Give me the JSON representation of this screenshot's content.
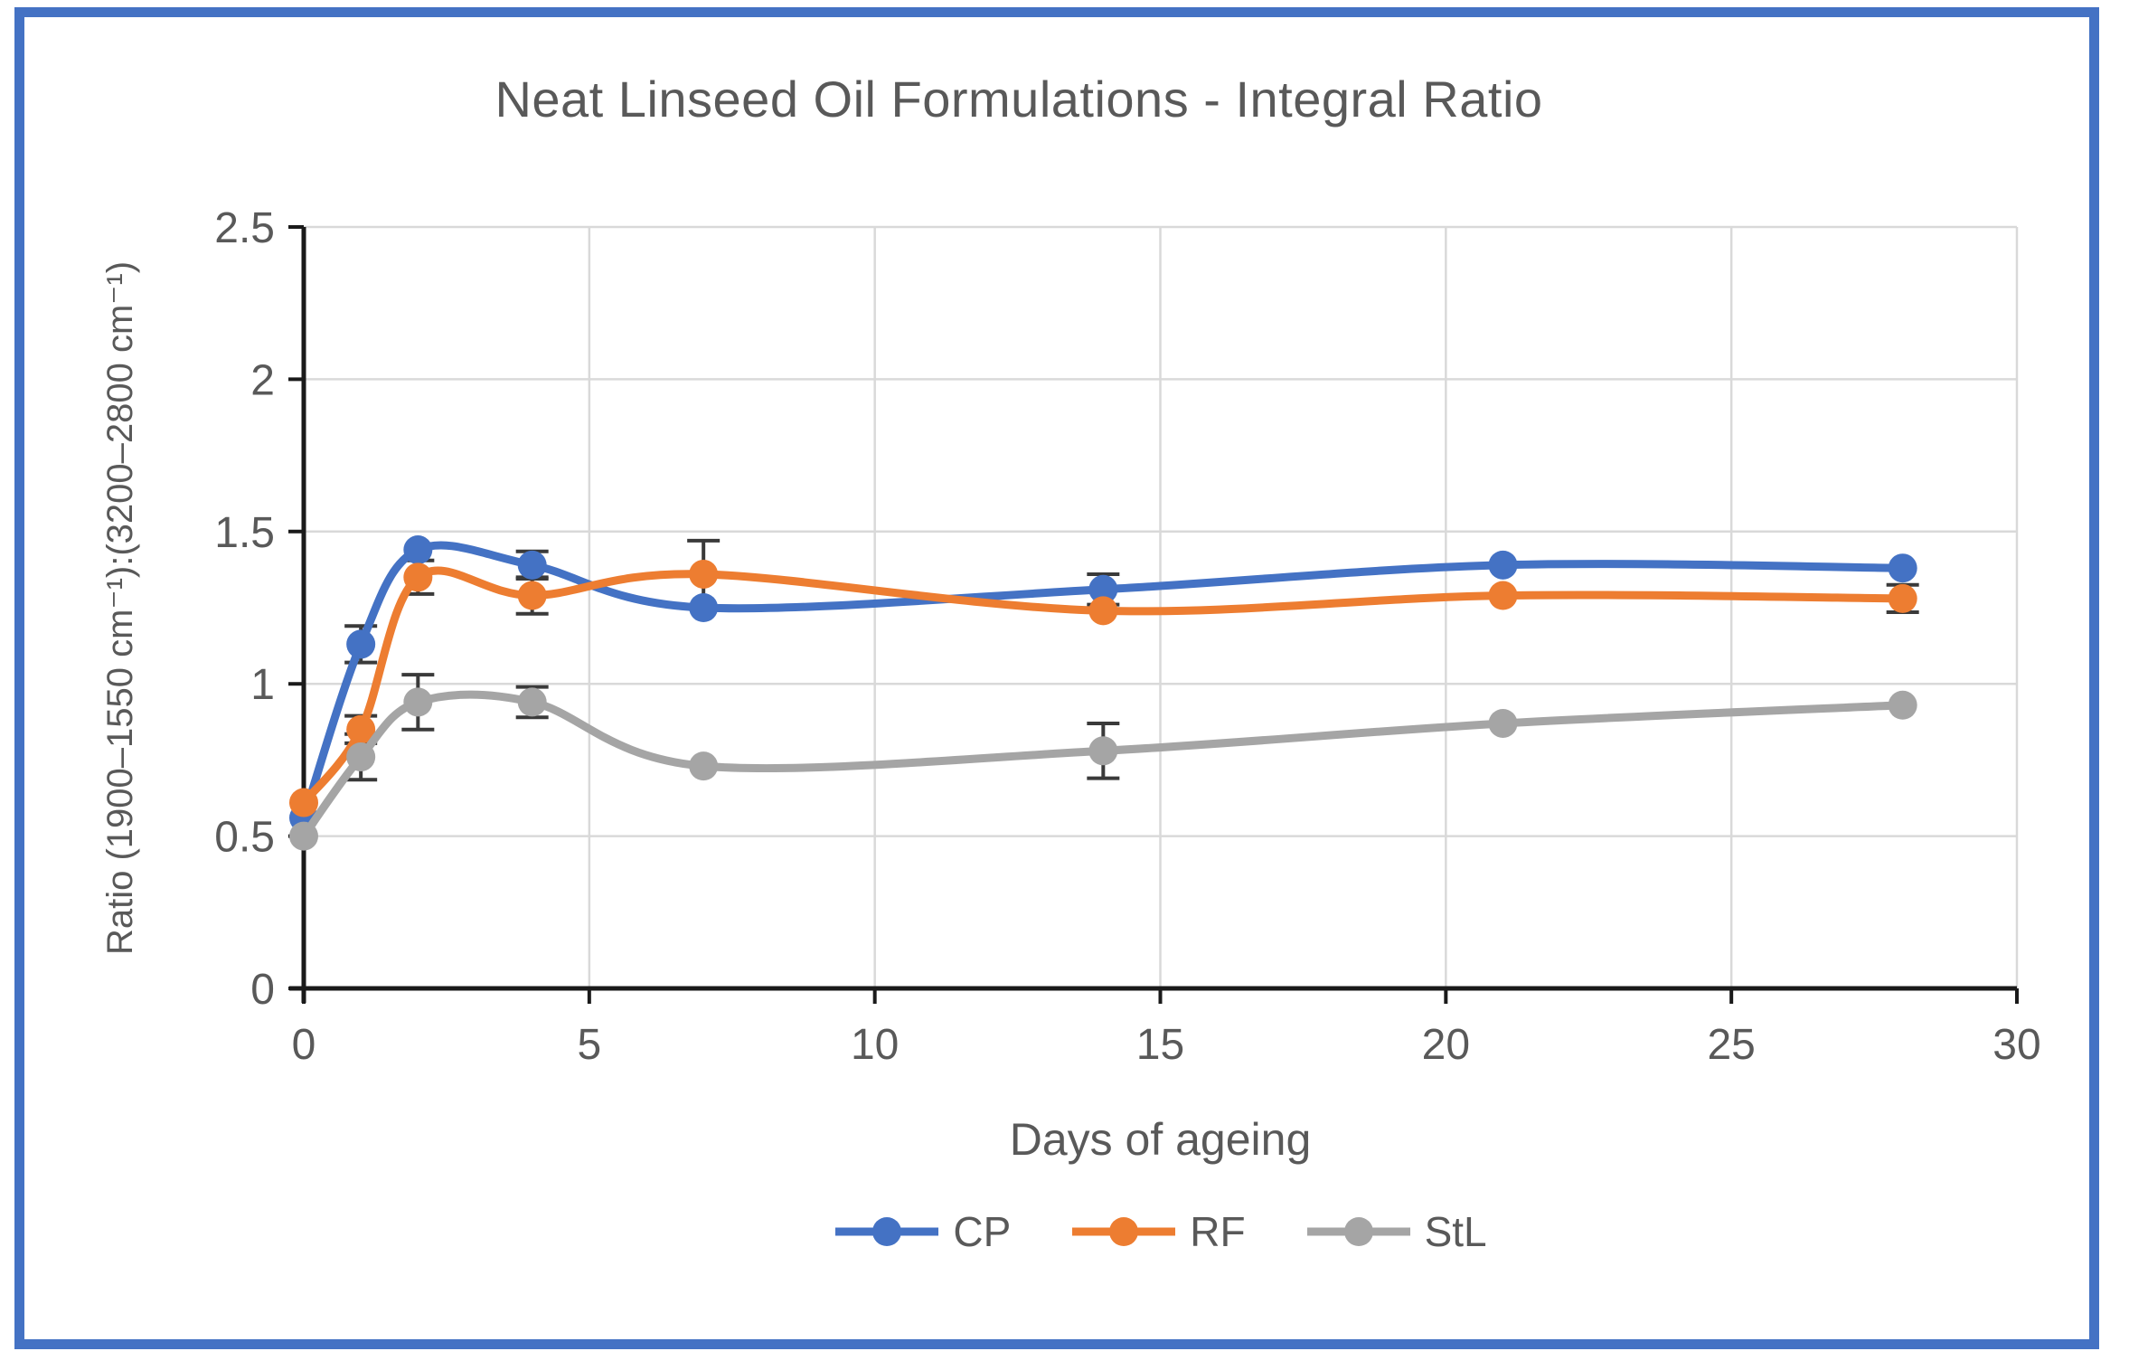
{
  "chart": {
    "title": "Neat Linseed Oil Formulations - Integral Ratio",
    "x_axis_title": "Days of ageing",
    "y_axis_title": "Ratio (1900–1550 cm⁻¹):(3200–2800 cm⁻¹)"
  },
  "chart_data": {
    "type": "line",
    "title": "Neat Linseed Oil Formulations - Integral Ratio",
    "xlabel": "Days of ageing",
    "ylabel": "Ratio (1900–1550 cm⁻¹):(3200–2800 cm⁻¹)",
    "x": [
      0,
      1,
      2,
      4,
      7,
      14,
      21,
      28
    ],
    "series": [
      {
        "name": "CP",
        "color": "#4472C4",
        "values": [
          0.56,
          1.13,
          1.44,
          1.39,
          1.25,
          1.31,
          1.39,
          1.38
        ],
        "error": [
          0,
          0.06,
          0,
          0.045,
          0,
          0.05,
          0,
          0
        ]
      },
      {
        "name": "RF",
        "color": "#ED7D31",
        "values": [
          0.61,
          0.85,
          1.35,
          1.29,
          1.36,
          1.24,
          1.29,
          1.28
        ],
        "error": [
          0,
          0.045,
          0.055,
          0.06,
          0.11,
          0,
          0,
          0.045
        ]
      },
      {
        "name": "StL",
        "color": "#A5A5A5",
        "values": [
          0.5,
          0.76,
          0.94,
          0.94,
          0.73,
          0.78,
          0.87,
          0.93
        ],
        "error": [
          0,
          0.075,
          0.09,
          0.05,
          0,
          0.09,
          0,
          0
        ]
      }
    ],
    "xlim": [
      0,
      30
    ],
    "ylim": [
      0,
      2.5
    ],
    "x_ticks": [
      0,
      5,
      10,
      15,
      20,
      25,
      30
    ],
    "y_ticks": [
      0,
      0.5,
      1,
      1.5,
      2,
      2.5
    ],
    "grid": true,
    "smooth": true,
    "legend_position": "bottom"
  },
  "colors": {
    "frame_border": "#4472C4",
    "grid": "#D9D9D9",
    "axis": "#1a1a1a",
    "text": "#595959",
    "error_bar": "#3a3a3a",
    "background": "#FFFFFF"
  }
}
